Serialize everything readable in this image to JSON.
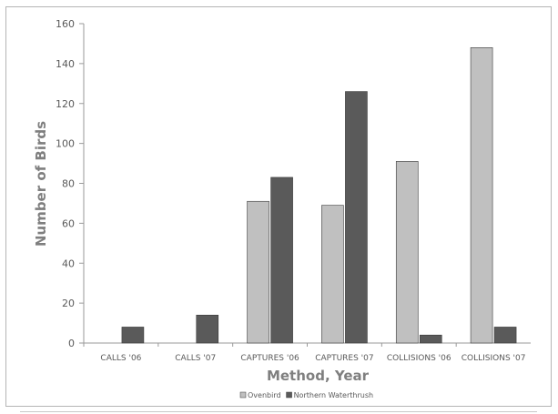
{
  "chart_data": {
    "type": "bar",
    "xlabel": "Method, Year",
    "ylabel": "Number of Birds",
    "ylim": [
      0,
      160
    ],
    "yticks": [
      0,
      20,
      40,
      60,
      80,
      100,
      120,
      140,
      160
    ],
    "categories": [
      "CALLS '06",
      "CALLS '07",
      "CAPTURES '06",
      "CAPTURES '07",
      "COLLISIONS '06",
      "COLLISIONS '07"
    ],
    "series": [
      {
        "name": "Ovenbird",
        "color": "#c0c0c0",
        "values": [
          0,
          0,
          71,
          69,
          91,
          148
        ]
      },
      {
        "name": "Northern Waterthrush",
        "color": "#5a5a5a",
        "values": [
          8,
          14,
          83,
          126,
          4,
          8
        ]
      }
    ],
    "grid": false,
    "legend_position": "bottom"
  }
}
